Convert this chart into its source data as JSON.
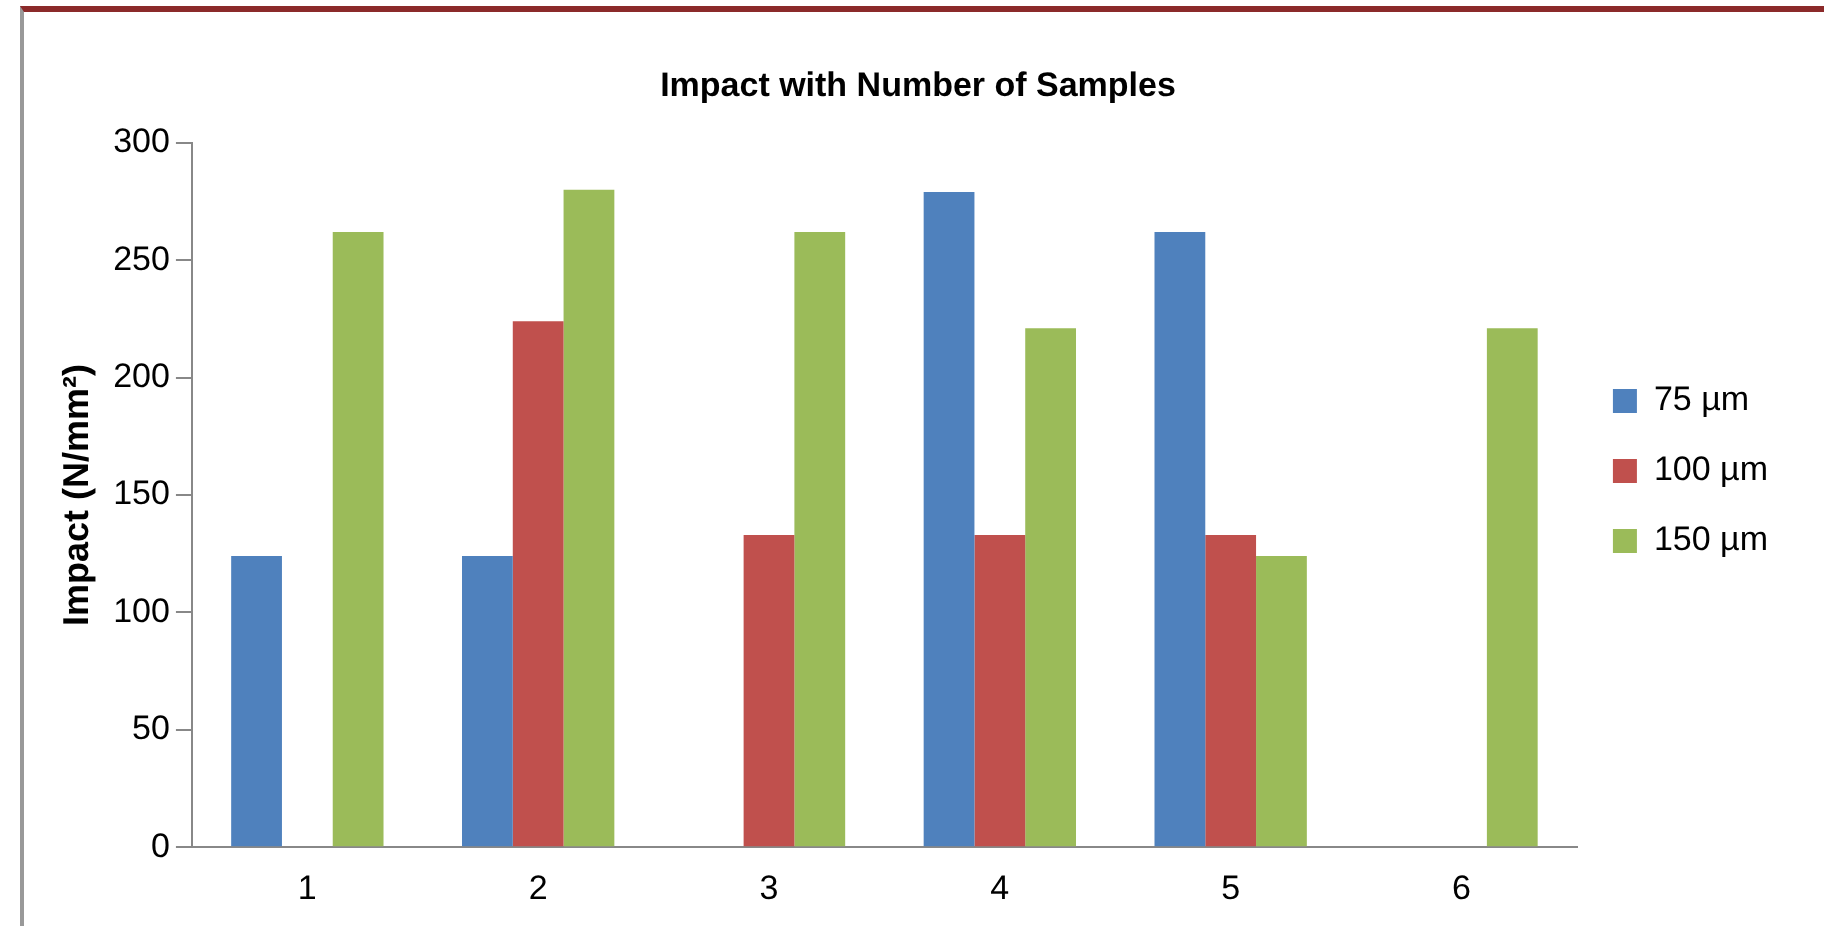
{
  "chart_data": {
    "type": "bar",
    "title": "Impact with Number of Samples",
    "ylabel": "Impact (N/mm²)",
    "categories": [
      "1",
      "2",
      "3",
      "4",
      "5",
      "6"
    ],
    "series": [
      {
        "name": "75 µm",
        "color": "#4f81bd",
        "values": [
          124,
          124,
          0,
          279,
          262,
          0
        ]
      },
      {
        "name": "100 µm",
        "color": "#c0504d",
        "values": [
          0,
          224,
          133,
          133,
          133,
          0
        ]
      },
      {
        "name": "150 µm",
        "color": "#9bbb59",
        "values": [
          262,
          280,
          262,
          221,
          124,
          221
        ]
      }
    ],
    "ylim": [
      0,
      300
    ],
    "yticks": [
      0,
      50,
      100,
      150,
      200,
      250,
      300
    ],
    "grid": false,
    "legend": "right"
  }
}
